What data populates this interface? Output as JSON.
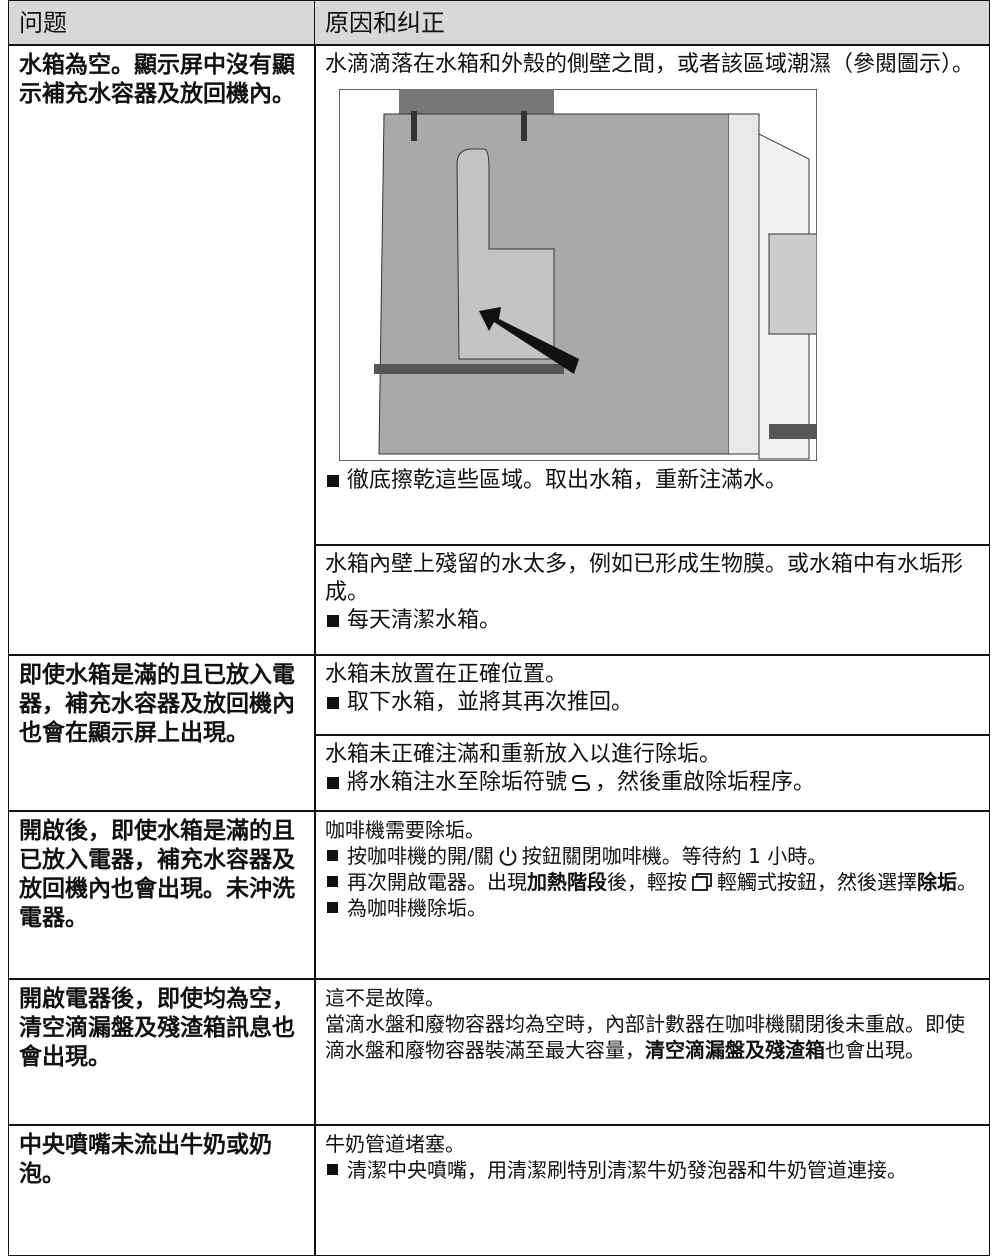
{
  "header": {
    "col1": "问题",
    "col2": "原因和纠正"
  },
  "rows": [
    {
      "problem": "水箱為空。顯示屏中沒有顯示補充水容器及放回機內。",
      "causes": [
        {
          "text": "水滴滴落在水箱和外殼的側壁之間，或者該區域潮濕（參閱圖示）。",
          "bullets": [
            "徹底擦乾這些區域。取出水箱，重新注滿水。"
          ]
        },
        {
          "text": "水箱內壁上殘留的水太多，例如已形成生物膜。或水箱中有水垢形成。",
          "bullets": [
            "每天清潔水箱。"
          ]
        }
      ]
    },
    {
      "problem": "即使水箱是滿的且已放入電器，補充水容器及放回機內也會在顯示屏上出現。",
      "causes": [
        {
          "text": "水箱未放置在正確位置。",
          "bullets": [
            "取下水箱，並將其再次推回。"
          ]
        },
        {
          "text": "水箱未正確注滿和重新放入以進行除垢。",
          "bullets": [
            [
              "將水箱注水至除垢符號",
              "，然後重啟除垢程序。"
            ]
          ]
        }
      ]
    },
    {
      "problem": "開啟後，即使水箱是滿的且已放入電器，補充水容器及放回機內也會出現。未沖洗電器。",
      "causes": [
        {
          "text": "咖啡機需要除垢。",
          "bullets": [
            [
              "按咖啡機的開/關",
              "按鈕關閉咖啡機。等待約 1 小時。"
            ],
            [
              "再次開啟電器。出現",
              "加熱階段",
              "後，輕按",
              "輕觸式按鈕，然後選擇",
              "除垢",
              "。"
            ],
            "為咖啡機除垢。"
          ]
        }
      ]
    },
    {
      "problem": "開啟電器後，即使均為空，清空滴漏盤及殘渣箱訊息也會出現。",
      "causes": [
        {
          "text": "這不是故障。",
          "paragraph": [
            "當滴水盤和廢物容器均為空時，內部計數器在咖啡機關閉後未重啟。即使滴水盤和廢物容器裝滿至最大容量，",
            "清空滴漏盤及殘渣箱",
            "也會出現。"
          ]
        }
      ]
    },
    {
      "problem": "中央噴嘴未流出牛奶或奶泡。",
      "causes": [
        {
          "text": "牛奶管道堵塞。",
          "bullets": [
            "清潔中央噴嘴，用清潔刷特別清潔牛奶發泡器和牛奶管道連接。"
          ]
        }
      ]
    }
  ]
}
